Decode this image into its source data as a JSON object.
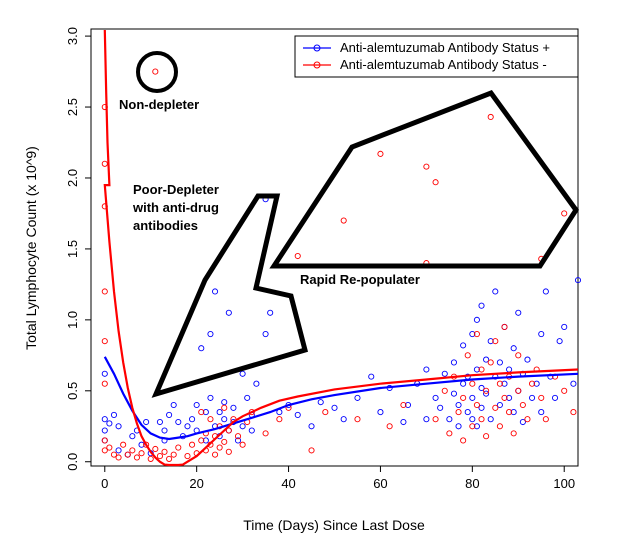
{
  "chart_data": {
    "type": "scatter",
    "title": "",
    "xlabel": "Time (Days) Since Last Dose",
    "ylabel": "Total Lymphocyte Count (x 10^9)",
    "xlim": [
      -3,
      103
    ],
    "ylim": [
      -0.03,
      3.05
    ],
    "xticks": [
      "0",
      "20",
      "40",
      "60",
      "80",
      "100"
    ],
    "yticks": [
      "0.0",
      "0.5",
      "1.0",
      "1.5",
      "2.0",
      "2.5",
      "3.0"
    ],
    "legend_position": "top-right",
    "grid": false,
    "series": [
      {
        "name": "Anti-alemtuzumab Antibody Status +",
        "color": "#0000ff",
        "points": [
          [
            0,
            0.62
          ],
          [
            0,
            0.3
          ],
          [
            0,
            0.22
          ],
          [
            0,
            0.15
          ],
          [
            1,
            0.27
          ],
          [
            2,
            0.33
          ],
          [
            3,
            0.25
          ],
          [
            3,
            0.08
          ],
          [
            5,
            0.05
          ],
          [
            6,
            0.18
          ],
          [
            7,
            0.22
          ],
          [
            8,
            0.12
          ],
          [
            9,
            0.28
          ],
          [
            10,
            0.06
          ],
          [
            12,
            0.28
          ],
          [
            13,
            0.22
          ],
          [
            13,
            0.15
          ],
          [
            14,
            0.33
          ],
          [
            15,
            0.4
          ],
          [
            16,
            0.28
          ],
          [
            17,
            0.18
          ],
          [
            18,
            0.25
          ],
          [
            19,
            0.3
          ],
          [
            20,
            0.22
          ],
          [
            20,
            0.4
          ],
          [
            21,
            0.8
          ],
          [
            22,
            0.35
          ],
          [
            22,
            0.15
          ],
          [
            23,
            0.45
          ],
          [
            23,
            0.9
          ],
          [
            24,
            0.25
          ],
          [
            24,
            1.2
          ],
          [
            25,
            0.35
          ],
          [
            25,
            0.18
          ],
          [
            26,
            0.3
          ],
          [
            26,
            0.42
          ],
          [
            27,
            0.22
          ],
          [
            27,
            1.05
          ],
          [
            28,
            0.28
          ],
          [
            28,
            0.38
          ],
          [
            29,
            0.15
          ],
          [
            30,
            0.25
          ],
          [
            30,
            0.62
          ],
          [
            31,
            0.45
          ],
          [
            32,
            0.33
          ],
          [
            32,
            0.22
          ],
          [
            33,
            0.55
          ],
          [
            35,
            0.9
          ],
          [
            35,
            1.85
          ],
          [
            36,
            1.05
          ],
          [
            38,
            0.35
          ],
          [
            40,
            0.4
          ],
          [
            42,
            0.33
          ],
          [
            45,
            0.25
          ],
          [
            47,
            0.42
          ],
          [
            50,
            0.38
          ],
          [
            52,
            0.3
          ],
          [
            55,
            0.45
          ],
          [
            58,
            0.6
          ],
          [
            60,
            0.35
          ],
          [
            62,
            0.52
          ],
          [
            65,
            0.28
          ],
          [
            66,
            0.4
          ],
          [
            68,
            0.55
          ],
          [
            70,
            0.3
          ],
          [
            70,
            0.65
          ],
          [
            72,
            0.45
          ],
          [
            73,
            0.38
          ],
          [
            74,
            0.62
          ],
          [
            75,
            0.3
          ],
          [
            76,
            0.7
          ],
          [
            76,
            0.48
          ],
          [
            77,
            0.25
          ],
          [
            77,
            0.4
          ],
          [
            78,
            0.55
          ],
          [
            78,
            0.82
          ],
          [
            79,
            0.6
          ],
          [
            79,
            0.35
          ],
          [
            80,
            0.9
          ],
          [
            80,
            0.45
          ],
          [
            80,
            0.3
          ],
          [
            81,
            1.0
          ],
          [
            81,
            0.65
          ],
          [
            81,
            0.25
          ],
          [
            82,
            0.52
          ],
          [
            82,
            1.1
          ],
          [
            82,
            0.38
          ],
          [
            83,
            0.72
          ],
          [
            83,
            0.48
          ],
          [
            84,
            0.85
          ],
          [
            84,
            0.3
          ],
          [
            85,
            0.6
          ],
          [
            85,
            1.2
          ],
          [
            86,
            0.4
          ],
          [
            86,
            0.7
          ],
          [
            87,
            0.55
          ],
          [
            87,
            0.95
          ],
          [
            88,
            0.45
          ],
          [
            88,
            0.65
          ],
          [
            89,
            0.35
          ],
          [
            89,
            0.8
          ],
          [
            90,
            0.5
          ],
          [
            90,
            1.05
          ],
          [
            91,
            0.62
          ],
          [
            91,
            0.28
          ],
          [
            92,
            0.72
          ],
          [
            93,
            0.45
          ],
          [
            94,
            0.55
          ],
          [
            95,
            0.35
          ],
          [
            95,
            0.9
          ],
          [
            96,
            1.2
          ],
          [
            97,
            0.6
          ],
          [
            98,
            0.45
          ],
          [
            99,
            0.85
          ],
          [
            100,
            0.95
          ],
          [
            102,
            0.55
          ],
          [
            103,
            1.28
          ]
        ],
        "fit": [
          [
            0,
            0.74
          ],
          [
            2,
            0.62
          ],
          [
            4,
            0.48
          ],
          [
            6,
            0.36
          ],
          [
            8,
            0.26
          ],
          [
            10,
            0.2
          ],
          [
            12,
            0.17
          ],
          [
            14,
            0.16
          ],
          [
            16,
            0.17
          ],
          [
            18,
            0.18
          ],
          [
            20,
            0.2
          ],
          [
            24,
            0.23
          ],
          [
            28,
            0.27
          ],
          [
            32,
            0.31
          ],
          [
            36,
            0.35
          ],
          [
            40,
            0.4
          ],
          [
            45,
            0.44
          ],
          [
            50,
            0.47
          ],
          [
            60,
            0.52
          ],
          [
            70,
            0.55
          ],
          [
            80,
            0.58
          ],
          [
            90,
            0.6
          ],
          [
            103,
            0.62
          ]
        ]
      },
      {
        "name": "Anti-alemtuzumab Antibody Status -",
        "color": "#ff0000",
        "points": [
          [
            0,
            3.1
          ],
          [
            0,
            2.5
          ],
          [
            0,
            2.1
          ],
          [
            0,
            1.8
          ],
          [
            0,
            1.2
          ],
          [
            0,
            0.85
          ],
          [
            0,
            0.55
          ],
          [
            0,
            0.15
          ],
          [
            0,
            0.08
          ],
          [
            1,
            0.1
          ],
          [
            2,
            0.05
          ],
          [
            3,
            0.03
          ],
          [
            4,
            0.12
          ],
          [
            5,
            0.05
          ],
          [
            6,
            0.08
          ],
          [
            7,
            0.03
          ],
          [
            8,
            0.06
          ],
          [
            9,
            0.12
          ],
          [
            10,
            0.02
          ],
          [
            11,
            0.09
          ],
          [
            11,
            2.75
          ],
          [
            12,
            0.04
          ],
          [
            13,
            0.07
          ],
          [
            14,
            0.02
          ],
          [
            15,
            0.05
          ],
          [
            16,
            0.1
          ],
          [
            18,
            0.04
          ],
          [
            19,
            0.12
          ],
          [
            20,
            0.06
          ],
          [
            21,
            0.15
          ],
          [
            21,
            0.35
          ],
          [
            22,
            0.08
          ],
          [
            22,
            0.2
          ],
          [
            23,
            0.12
          ],
          [
            23,
            0.3
          ],
          [
            24,
            0.05
          ],
          [
            24,
            0.18
          ],
          [
            25,
            0.1
          ],
          [
            25,
            0.25
          ],
          [
            26,
            0.14
          ],
          [
            26,
            0.38
          ],
          [
            27,
            0.07
          ],
          [
            27,
            0.22
          ],
          [
            28,
            0.3
          ],
          [
            29,
            0.18
          ],
          [
            30,
            0.12
          ],
          [
            31,
            0.28
          ],
          [
            32,
            0.35
          ],
          [
            35,
            0.2
          ],
          [
            38,
            0.3
          ],
          [
            40,
            0.38
          ],
          [
            42,
            1.45
          ],
          [
            45,
            0.08
          ],
          [
            48,
            0.35
          ],
          [
            52,
            1.7
          ],
          [
            55,
            0.3
          ],
          [
            60,
            2.17
          ],
          [
            62,
            0.25
          ],
          [
            65,
            0.4
          ],
          [
            70,
            1.4
          ],
          [
            70,
            2.08
          ],
          [
            72,
            1.97
          ],
          [
            72,
            0.3
          ],
          [
            74,
            0.5
          ],
          [
            75,
            0.2
          ],
          [
            76,
            0.6
          ],
          [
            77,
            0.35
          ],
          [
            78,
            0.45
          ],
          [
            78,
            0.15
          ],
          [
            79,
            0.75
          ],
          [
            80,
            0.25
          ],
          [
            80,
            0.55
          ],
          [
            81,
            0.4
          ],
          [
            81,
            0.9
          ],
          [
            82,
            0.3
          ],
          [
            82,
            0.65
          ],
          [
            83,
            0.5
          ],
          [
            83,
            0.18
          ],
          [
            84,
            2.43
          ],
          [
            84,
            0.7
          ],
          [
            85,
            0.38
          ],
          [
            85,
            0.85
          ],
          [
            86,
            0.55
          ],
          [
            86,
            0.25
          ],
          [
            87,
            0.45
          ],
          [
            87,
            0.95
          ],
          [
            88,
            0.35
          ],
          [
            88,
            0.6
          ],
          [
            89,
            0.2
          ],
          [
            90,
            0.5
          ],
          [
            90,
            0.75
          ],
          [
            91,
            0.4
          ],
          [
            92,
            0.3
          ],
          [
            93,
            0.55
          ],
          [
            94,
            0.65
          ],
          [
            95,
            1.43
          ],
          [
            95,
            0.45
          ],
          [
            96,
            0.3
          ],
          [
            98,
            0.6
          ],
          [
            100,
            0.5
          ],
          [
            100,
            1.75
          ],
          [
            102,
            0.35
          ]
        ],
        "fit": [
          [
            0,
            1.95
          ],
          [
            1,
            1.55
          ],
          [
            2,
            1.2
          ],
          [
            3,
            0.92
          ],
          [
            4,
            0.7
          ],
          [
            5,
            0.52
          ],
          [
            6,
            0.38
          ],
          [
            7,
            0.27
          ],
          [
            8,
            0.18
          ],
          [
            9,
            0.12
          ],
          [
            10,
            0.07
          ],
          [
            11,
            0.03
          ],
          [
            12,
            0.0
          ],
          [
            13,
            -0.02
          ],
          [
            14,
            -0.03
          ],
          [
            15,
            -0.03
          ],
          [
            16,
            -0.03
          ],
          [
            17,
            -0.02
          ],
          [
            18,
            0.0
          ],
          [
            20,
            0.04
          ],
          [
            22,
            0.1
          ],
          [
            24,
            0.16
          ],
          [
            26,
            0.22
          ],
          [
            28,
            0.28
          ],
          [
            30,
            0.32
          ],
          [
            34,
            0.38
          ],
          [
            38,
            0.43
          ],
          [
            42,
            0.46
          ],
          [
            50,
            0.51
          ],
          [
            60,
            0.55
          ],
          [
            70,
            0.58
          ],
          [
            80,
            0.61
          ],
          [
            90,
            0.63
          ],
          [
            103,
            0.65
          ]
        ],
        "fit_initial_spike": [
          [
            0,
            3.05
          ],
          [
            0.3,
            2.6
          ],
          [
            0.6,
            2.25
          ],
          [
            1,
            1.95
          ]
        ]
      }
    ],
    "annotations": [
      {
        "text": "Non-depleter"
      },
      {
        "text": "Poor-Depleter"
      },
      {
        "text": "with anti-drug"
      },
      {
        "text": "antibodies"
      },
      {
        "text": "Rapid Re-populater"
      }
    ]
  }
}
